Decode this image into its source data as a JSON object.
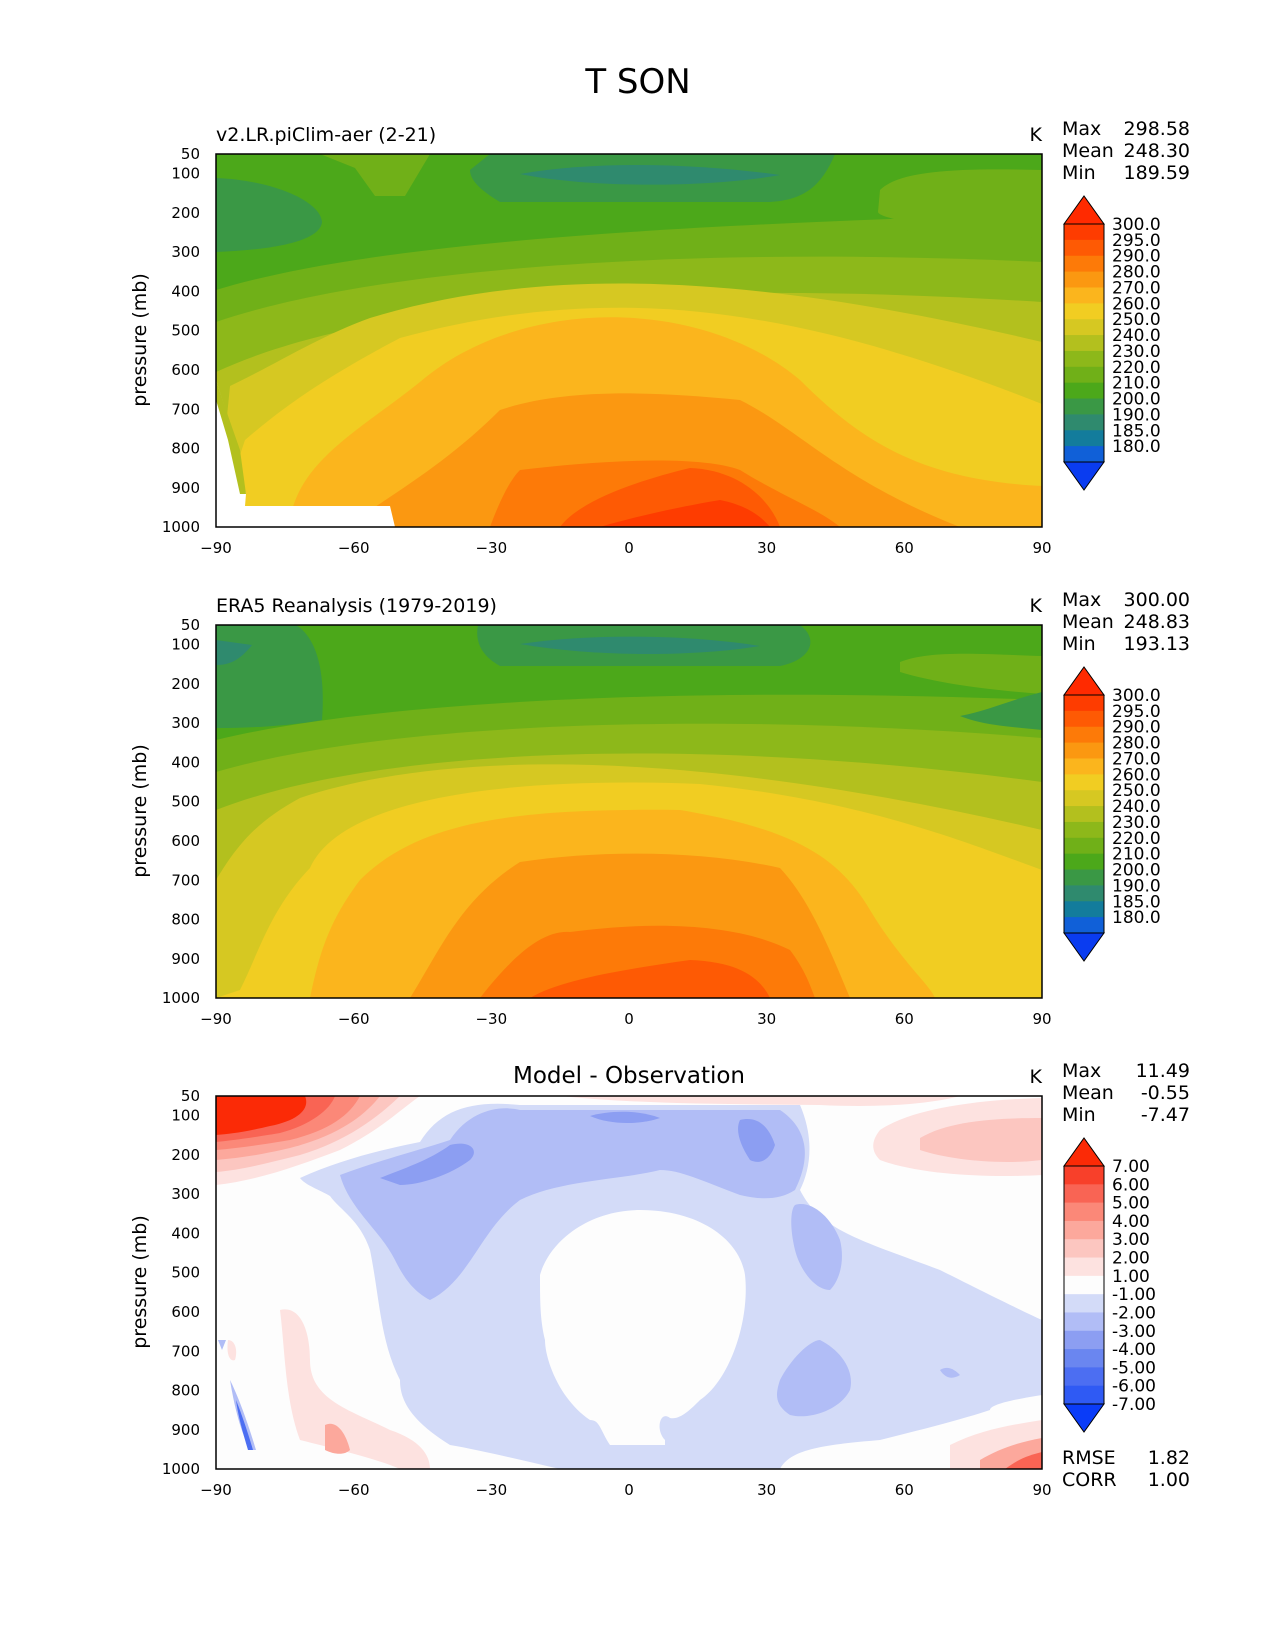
{
  "figure": {
    "title": "T SON"
  },
  "chart_data": [
    {
      "type": "filled-contour",
      "title": "v2.LR.piClim-aer (2-21)",
      "units": "K",
      "ylabel": "pressure (mb)",
      "xlabel": "",
      "xlim": [
        -90,
        90
      ],
      "ylim": [
        1000,
        50
      ],
      "xticks": [
        "−90",
        "−60",
        "−30",
        "0",
        "30",
        "60",
        "90"
      ],
      "yticks": [
        "50",
        "100",
        "200",
        "300",
        "400",
        "500",
        "600",
        "700",
        "800",
        "900",
        "1000"
      ],
      "stats": [
        {
          "label": "Max",
          "value": "298.58"
        },
        {
          "label": "Mean",
          "value": "248.30"
        },
        {
          "label": "Min",
          "value": "189.59"
        }
      ],
      "colorbar": {
        "extend": "both",
        "levels": [
          "180.0",
          "185.0",
          "190.0",
          "200.0",
          "210.0",
          "220.0",
          "230.0",
          "240.0",
          "250.0",
          "260.0",
          "270.0",
          "280.0",
          "290.0",
          "295.0",
          "300.0"
        ],
        "colors": [
          "#0a3cf0",
          "#1060d8",
          "#137c9c",
          "#2f8a6e",
          "#3a9845",
          "#4ca81a",
          "#70b018",
          "#8db81a",
          "#b3c01e",
          "#d6c822",
          "#f1cd22",
          "#fbb51d",
          "#fb9811",
          "#fd7a08",
          "#fe5a04",
          "#fe3c00",
          "#ff2a00"
        ]
      },
      "grid": false
    },
    {
      "type": "filled-contour",
      "title": "ERA5 Reanalysis (1979-2019)",
      "units": "K",
      "ylabel": "pressure (mb)",
      "xlabel": "",
      "xlim": [
        -90,
        90
      ],
      "ylim": [
        1000,
        50
      ],
      "xticks": [
        "−90",
        "−60",
        "−30",
        "0",
        "30",
        "60",
        "90"
      ],
      "yticks": [
        "50",
        "100",
        "200",
        "300",
        "400",
        "500",
        "600",
        "700",
        "800",
        "900",
        "1000"
      ],
      "stats": [
        {
          "label": "Max",
          "value": "300.00"
        },
        {
          "label": "Mean",
          "value": "248.83"
        },
        {
          "label": "Min",
          "value": "193.13"
        }
      ],
      "colorbar": {
        "extend": "both",
        "levels": [
          "180.0",
          "185.0",
          "190.0",
          "200.0",
          "210.0",
          "220.0",
          "230.0",
          "240.0",
          "250.0",
          "260.0",
          "270.0",
          "280.0",
          "290.0",
          "295.0",
          "300.0"
        ],
        "colors": [
          "#0a3cf0",
          "#1060d8",
          "#137c9c",
          "#2f8a6e",
          "#3a9845",
          "#4ca81a",
          "#70b018",
          "#8db81a",
          "#b3c01e",
          "#d6c822",
          "#f1cd22",
          "#fbb51d",
          "#fb9811",
          "#fd7a08",
          "#fe5a04",
          "#fe3c00",
          "#ff2a00"
        ]
      },
      "grid": false
    },
    {
      "type": "filled-contour",
      "title": "Model - Observation",
      "units": "K",
      "ylabel": "pressure (mb)",
      "xlabel": "",
      "xlim": [
        -90,
        90
      ],
      "ylim": [
        1000,
        50
      ],
      "xticks": [
        "−90",
        "−60",
        "−30",
        "0",
        "30",
        "60",
        "90"
      ],
      "yticks": [
        "50",
        "100",
        "200",
        "300",
        "400",
        "500",
        "600",
        "700",
        "800",
        "900",
        "1000"
      ],
      "stats": [
        {
          "label": "Max",
          "value": "11.49"
        },
        {
          "label": "Mean",
          "value": "-0.55"
        },
        {
          "label": "Min",
          "value": "-7.47"
        }
      ],
      "footer_stats": [
        {
          "label": "RMSE",
          "value": "1.82"
        },
        {
          "label": "CORR",
          "value": "1.00"
        }
      ],
      "colorbar": {
        "extend": "both",
        "levels": [
          "-7.00",
          "-6.00",
          "-5.00",
          "-4.00",
          "-3.00",
          "-2.00",
          "-1.00",
          "1.00",
          "2.00",
          "3.00",
          "4.00",
          "5.00",
          "6.00",
          "7.00"
        ],
        "colors": [
          "#0a3cf8",
          "#2f5af4",
          "#4c6ef2",
          "#6a86f0",
          "#8c9ef2",
          "#b1bdf6",
          "#d3dbf8",
          "#fdfdfd",
          "#fde2e0",
          "#fcc6c0",
          "#fca89c",
          "#fb8878",
          "#f96454",
          "#f8402a",
          "#fb2a06"
        ]
      },
      "grid": false
    }
  ]
}
